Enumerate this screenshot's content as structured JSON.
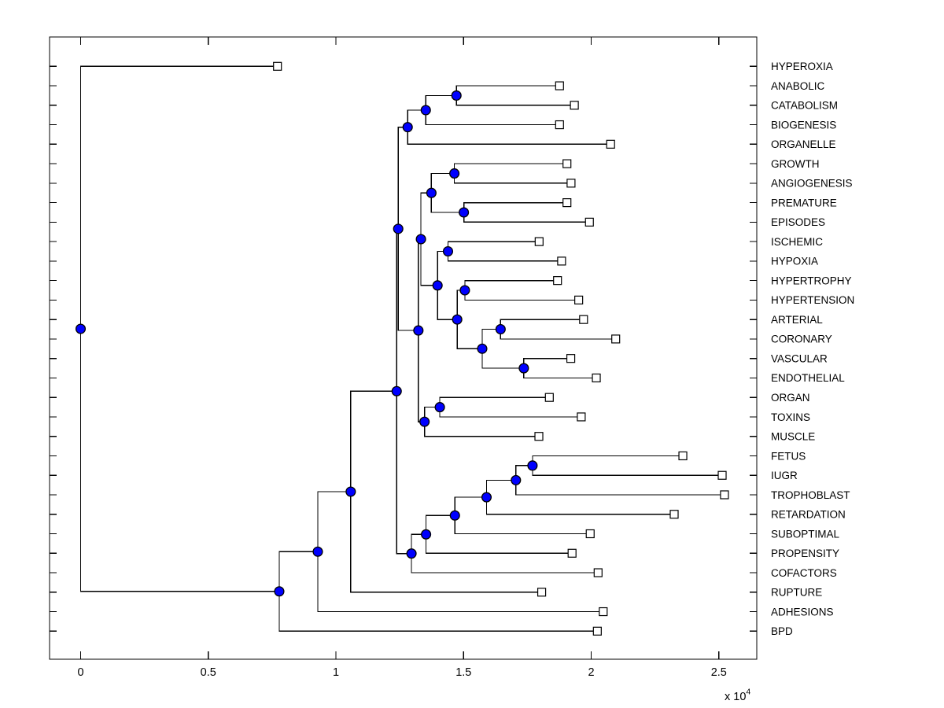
{
  "window": {
    "background": "#FFFFFF"
  },
  "chart_data": {
    "type": "dendrogram",
    "title": "",
    "orientation": "horizontal, root at left, leaf labels on right",
    "grid": false,
    "x_axis": {
      "tick_values": [
        0,
        5000,
        10000,
        15000,
        20000,
        25000
      ],
      "tick_labels": [
        "0",
        "0.5",
        "1",
        "1.5",
        "2",
        "2.5"
      ],
      "multiplier_text": "x 10",
      "multiplier_exponent": "4",
      "implied_scale": 10000,
      "range": [
        -1200,
        26500
      ],
      "ticks_on_all_sides": true
    },
    "y_axis": {
      "labels_position": "right",
      "tick_count": 30
    },
    "style": {
      "line_color": "#000000",
      "node_marker_fill": "#0000FF",
      "node_marker_edge": "#000000",
      "leaf_marker_fill": "#FFFFFF",
      "leaf_marker_edge": "#000000",
      "text_color": "#000000",
      "background": "#FFFFFF"
    },
    "leaves": [
      {
        "name": "HYPEROXIA",
        "distance": 7710
      },
      {
        "name": "ANABOLIC",
        "distance": 18760
      },
      {
        "name": "CATABOLISM",
        "distance": 19340
      },
      {
        "name": "BIOGENESIS",
        "distance": 18760
      },
      {
        "name": "ORGANELLE",
        "distance": 20760
      },
      {
        "name": "GROWTH",
        "distance": 19050
      },
      {
        "name": "ANGIOGENESIS",
        "distance": 19210
      },
      {
        "name": "PREMATURE",
        "distance": 19050
      },
      {
        "name": "EPISODES",
        "distance": 19930
      },
      {
        "name": "ISCHEMIC",
        "distance": 17960
      },
      {
        "name": "HYPOXIA",
        "distance": 18840
      },
      {
        "name": "HYPERTROPHY",
        "distance": 18680
      },
      {
        "name": "HYPERTENSION",
        "distance": 19510
      },
      {
        "name": "ARTERIAL",
        "distance": 19700
      },
      {
        "name": "CORONARY",
        "distance": 20960
      },
      {
        "name": "VASCULAR",
        "distance": 19200
      },
      {
        "name": "ENDOTHELIAL",
        "distance": 20200
      },
      {
        "name": "ORGAN",
        "distance": 18360
      },
      {
        "name": "TOXINS",
        "distance": 19610
      },
      {
        "name": "MUSCLE",
        "distance": 17950
      },
      {
        "name": "FETUS",
        "distance": 23590
      },
      {
        "name": "IUGR",
        "distance": 25130
      },
      {
        "name": "TROPHOBLAST",
        "distance": 25220
      },
      {
        "name": "RETARDATION",
        "distance": 23250
      },
      {
        "name": "SUBOPTIMAL",
        "distance": 19960
      },
      {
        "name": "PROPENSITY",
        "distance": 19250
      },
      {
        "name": "COFACTORS",
        "distance": 20270
      },
      {
        "name": "RUPTURE",
        "distance": 18060
      },
      {
        "name": "ADHESIONS",
        "distance": 20470
      },
      {
        "name": "BPD",
        "distance": 20240
      }
    ],
    "merges": [
      {
        "id": "n_anab_catab",
        "children": [
          "L1",
          "L2"
        ],
        "distance": 14720
      },
      {
        "id": "n_acb",
        "children": [
          "n_anab_catab",
          "L3"
        ],
        "distance": 13520
      },
      {
        "id": "n_acbo",
        "children": [
          "n_acb",
          "L4"
        ],
        "distance": 12810
      },
      {
        "id": "n_grow_angio",
        "children": [
          "L5",
          "L6"
        ],
        "distance": 14640
      },
      {
        "id": "n_prem_epis",
        "children": [
          "L7",
          "L8"
        ],
        "distance": 15010
      },
      {
        "id": "n_grow_epis",
        "children": [
          "n_grow_angio",
          "n_prem_epis"
        ],
        "distance": 13740
      },
      {
        "id": "n_isch_hypox",
        "children": [
          "L9",
          "L10"
        ],
        "distance": 14390
      },
      {
        "id": "n_hyptr_hypten",
        "children": [
          "L11",
          "L12"
        ],
        "distance": 15050
      },
      {
        "id": "n_art_coron",
        "children": [
          "L13",
          "L14"
        ],
        "distance": 16450
      },
      {
        "id": "n_vasc_endo",
        "children": [
          "L15",
          "L16"
        ],
        "distance": 17360
      },
      {
        "id": "n_art_endo",
        "children": [
          "n_art_coron",
          "n_vasc_endo"
        ],
        "distance": 15730
      },
      {
        "id": "n_hyptr_endo",
        "children": [
          "n_hyptr_hypten",
          "n_art_endo"
        ],
        "distance": 14750
      },
      {
        "id": "n_isch_endo",
        "children": [
          "n_isch_hypox",
          "n_hyptr_endo"
        ],
        "distance": 13980
      },
      {
        "id": "n_grow_endo",
        "children": [
          "n_grow_epis",
          "n_isch_endo"
        ],
        "distance": 13330
      },
      {
        "id": "n_organ_tox",
        "children": [
          "L17",
          "L18"
        ],
        "distance": 14070
      },
      {
        "id": "n_organ_musc",
        "children": [
          "n_organ_tox",
          "L19"
        ],
        "distance": 13470
      },
      {
        "id": "n_grow_musc",
        "children": [
          "n_grow_endo",
          "n_organ_musc"
        ],
        "distance": 13230
      },
      {
        "id": "n_anab_musc",
        "children": [
          "n_acbo",
          "n_grow_musc"
        ],
        "distance": 12440
      },
      {
        "id": "n_fetus_iugr",
        "children": [
          "L20",
          "L21"
        ],
        "distance": 17700
      },
      {
        "id": "n_fi_troph",
        "children": [
          "n_fetus_iugr",
          "L22"
        ],
        "distance": 17050
      },
      {
        "id": "n_fit_retard",
        "children": [
          "n_fi_troph",
          "L23"
        ],
        "distance": 15900
      },
      {
        "id": "n_fitr_subopt",
        "children": [
          "n_fit_retard",
          "L24"
        ],
        "distance": 14660
      },
      {
        "id": "n_fitrs_prop",
        "children": [
          "n_fitr_subopt",
          "L25"
        ],
        "distance": 13530
      },
      {
        "id": "n_fetus_cofac",
        "children": [
          "n_fitrs_prop",
          "L26"
        ],
        "distance": 12960
      },
      {
        "id": "n_main",
        "children": [
          "n_anab_musc",
          "n_fetus_cofac"
        ],
        "distance": 12380
      },
      {
        "id": "n_main_rupt",
        "children": [
          "n_main",
          "L27"
        ],
        "distance": 10580
      },
      {
        "id": "n_mr_adhes",
        "children": [
          "n_main_rupt",
          "L28"
        ],
        "distance": 9290
      },
      {
        "id": "n_mra_bpd",
        "children": [
          "n_mr_adhes",
          "L29"
        ],
        "distance": 7780
      },
      {
        "id": "root",
        "children": [
          "L0",
          "n_mra_bpd"
        ],
        "distance": 0
      }
    ]
  }
}
